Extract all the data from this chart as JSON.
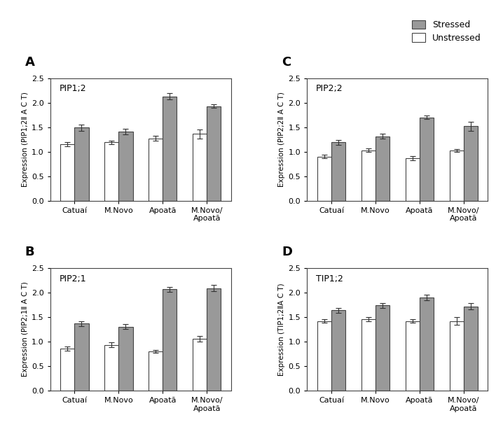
{
  "panels": [
    {
      "label": "A",
      "gene": "PIP1;2",
      "ylabel": "Expression (PIP1;2Ⅱ A C T)",
      "categories": [
        "Catuaí",
        "M.Novo",
        "Apoatã",
        "M.Novo/\nApoatã"
      ],
      "unstressed_vals": [
        1.15,
        1.19,
        1.27,
        1.36
      ],
      "stressed_vals": [
        1.49,
        1.41,
        2.13,
        1.93
      ],
      "unstressed_err": [
        0.04,
        0.04,
        0.05,
        0.09
      ],
      "stressed_err": [
        0.06,
        0.06,
        0.07,
        0.04
      ]
    },
    {
      "label": "B",
      "gene": "PIP2;1",
      "ylabel": "Expression (PIP2;1Ⅱ A C T)",
      "categories": [
        "Catuaí",
        "M.Novo",
        "Apoatã",
        "M.Novo/\nApoatã"
      ],
      "unstressed_vals": [
        0.86,
        0.93,
        0.8,
        1.06
      ],
      "stressed_vals": [
        1.37,
        1.3,
        2.07,
        2.09
      ],
      "unstressed_err": [
        0.04,
        0.05,
        0.03,
        0.06
      ],
      "stressed_err": [
        0.05,
        0.05,
        0.05,
        0.06
      ]
    },
    {
      "label": "C",
      "gene": "PIP2;2",
      "ylabel": "Expression (PIP2;2Ⅱ A C T)",
      "categories": [
        "Catuaí",
        "M.Novo",
        "Apoatã",
        "M.Novo/\nApoatã"
      ],
      "unstressed_vals": [
        0.9,
        1.03,
        0.87,
        1.02
      ],
      "stressed_vals": [
        1.19,
        1.31,
        1.7,
        1.52
      ],
      "unstressed_err": [
        0.04,
        0.04,
        0.04,
        0.03
      ],
      "stressed_err": [
        0.05,
        0.05,
        0.04,
        0.09
      ]
    },
    {
      "label": "D",
      "gene": "TIP1;2",
      "ylabel": "Expression (TIP1;2ⅡA C T)",
      "categories": [
        "Catuaí",
        "M.Novo",
        "Apoatã",
        "M.Novo/\nApoatã"
      ],
      "unstressed_vals": [
        1.42,
        1.46,
        1.42,
        1.42
      ],
      "stressed_vals": [
        1.64,
        1.74,
        1.9,
        1.72
      ],
      "unstressed_err": [
        0.04,
        0.04,
        0.04,
        0.08
      ],
      "stressed_err": [
        0.05,
        0.05,
        0.06,
        0.06
      ]
    }
  ],
  "stressed_color": "#999999",
  "unstressed_color": "#ffffff",
  "bar_edge_color": "#444444",
  "ylim": [
    0.0,
    2.5
  ],
  "yticks": [
    0.0,
    0.5,
    1.0,
    1.5,
    2.0,
    2.5
  ],
  "bar_width": 0.32,
  "background_color": "#ffffff",
  "fig_width": 7.18,
  "fig_height": 6.2,
  "dpi": 100
}
